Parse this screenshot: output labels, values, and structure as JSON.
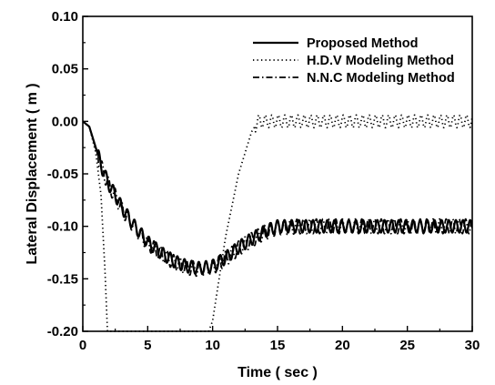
{
  "chart_data": {
    "type": "line",
    "xlabel": "Time ( sec )",
    "ylabel": "Lateral Displacement ( m )",
    "xlim": [
      0,
      30
    ],
    "ylim": [
      -0.2,
      0.1
    ],
    "xticks": [
      0,
      5,
      10,
      15,
      20,
      25,
      30
    ],
    "xtick_labels": [
      "0",
      "5",
      "10",
      "15",
      "20",
      "25",
      "30"
    ],
    "yticks": [
      0.1,
      0.05,
      0.0,
      -0.05,
      -0.1,
      -0.15,
      -0.2
    ],
    "ytick_labels": [
      "0.10",
      "0.05",
      "0.00",
      "-0.05",
      "-0.10",
      "-0.15",
      "-0.20"
    ],
    "grid": false,
    "legend_position": "top-right",
    "series": [
      {
        "name": "Proposed Method",
        "style": "solid",
        "color": "#000000",
        "oscillation": "≈±0.006 m, period ≈0.55 s",
        "x": [
          0,
          0.5,
          1.0,
          1.5,
          2.0,
          2.5,
          3.0,
          4.0,
          5.0,
          6.0,
          7.0,
          8.0,
          9.0,
          10.0,
          11.0,
          12.0,
          13.0,
          14.0,
          15.0,
          17.0,
          20.0,
          25.0,
          30.0
        ],
        "values": [
          0.0,
          -0.005,
          -0.025,
          -0.045,
          -0.06,
          -0.07,
          -0.082,
          -0.1,
          -0.115,
          -0.125,
          -0.133,
          -0.138,
          -0.14,
          -0.138,
          -0.13,
          -0.12,
          -0.112,
          -0.105,
          -0.1,
          -0.1,
          -0.1,
          -0.1,
          -0.1
        ]
      },
      {
        "name": "H.D.V Modeling Method",
        "style": "dotted",
        "color": "#000000",
        "oscillation": "≈±0.006 m, period ≈0.5 s after 13.5 s",
        "x": [
          0,
          0.5,
          1.0,
          1.4,
          1.7,
          1.9,
          9.7,
          10.0,
          10.5,
          11.0,
          11.5,
          12.0,
          12.5,
          13.0,
          13.5,
          14.0,
          15.0,
          20.0,
          25.0,
          30.0
        ],
        "values": [
          0.0,
          -0.005,
          -0.03,
          -0.07,
          -0.14,
          -0.2,
          -0.2,
          -0.19,
          -0.15,
          -0.11,
          -0.08,
          -0.05,
          -0.03,
          -0.01,
          0.0,
          0.0,
          0.0,
          0.0,
          0.0,
          0.0
        ]
      },
      {
        "name": "N.N.C Modeling Method",
        "style": "dash-dot",
        "color": "#000000",
        "oscillation": "≈±0.007 m, period ≈0.5 s",
        "x": [
          0,
          0.5,
          1.0,
          1.5,
          2.0,
          2.5,
          3.0,
          4.0,
          5.0,
          6.0,
          7.0,
          8.0,
          9.0,
          10.0,
          11.0,
          12.0,
          13.0,
          14.0,
          15.0,
          17.0,
          20.0,
          25.0,
          30.0
        ],
        "values": [
          0.0,
          -0.005,
          -0.026,
          -0.046,
          -0.061,
          -0.071,
          -0.083,
          -0.101,
          -0.116,
          -0.126,
          -0.134,
          -0.139,
          -0.141,
          -0.139,
          -0.131,
          -0.121,
          -0.113,
          -0.106,
          -0.101,
          -0.1,
          -0.1,
          -0.1,
          -0.1
        ]
      }
    ]
  }
}
